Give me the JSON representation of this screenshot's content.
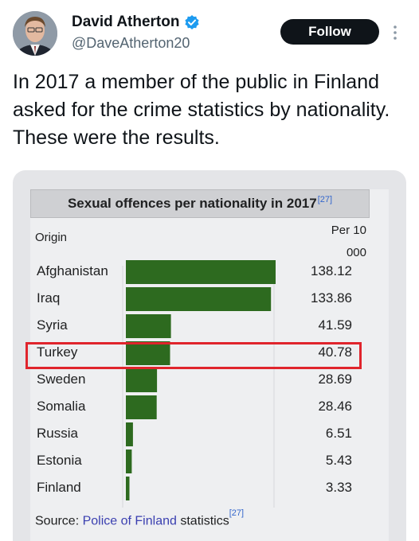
{
  "author": {
    "name": "David Atherton",
    "handle": "@DaveAtherton20"
  },
  "follow_label": "Follow",
  "tweet_text": "In 2017 a member of the public in Finland asked for the crime statistics by nationality. These were the results.",
  "table": {
    "caption": "Sexual offences per nationality in 2017",
    "caption_ref": "[27]",
    "col_origin": "Origin",
    "col_per": "Per 10 000",
    "rows": [
      {
        "origin": "Afghanistan",
        "value_label": "138.12"
      },
      {
        "origin": "Iraq",
        "value_label": "133.86"
      },
      {
        "origin": "Syria",
        "value_label": "41.59"
      },
      {
        "origin": "Turkey",
        "value_label": "40.78"
      },
      {
        "origin": "Sweden",
        "value_label": "28.69"
      },
      {
        "origin": "Somalia",
        "value_label": "28.46"
      },
      {
        "origin": "Russia",
        "value_label": "6.51"
      },
      {
        "origin": "Estonia",
        "value_label": "5.43"
      },
      {
        "origin": "Finland",
        "value_label": "3.33"
      }
    ],
    "highlighted_row": "Turkey",
    "source_prefix": "Source:",
    "source_link": "Police of Finland",
    "source_suffix": "statistics",
    "source_ref": "[27]"
  },
  "chart_data": {
    "type": "bar",
    "title": "Sexual offences per nationality in 2017",
    "categories": [
      "Afghanistan",
      "Iraq",
      "Syria",
      "Turkey",
      "Sweden",
      "Somalia",
      "Russia",
      "Estonia",
      "Finland"
    ],
    "values": [
      138.12,
      133.86,
      41.59,
      40.78,
      28.69,
      28.46,
      6.51,
      5.43,
      3.33
    ],
    "bar_color": "#2d6a1f"
  },
  "colors": {
    "accent_follow": "#0f1419",
    "verified": "#1d9bf0",
    "highlight": "#e0242c",
    "link": "#3a3fb0"
  },
  "icons": {
    "verified": "verified-badge-icon",
    "more": "more-vertical-icon"
  }
}
